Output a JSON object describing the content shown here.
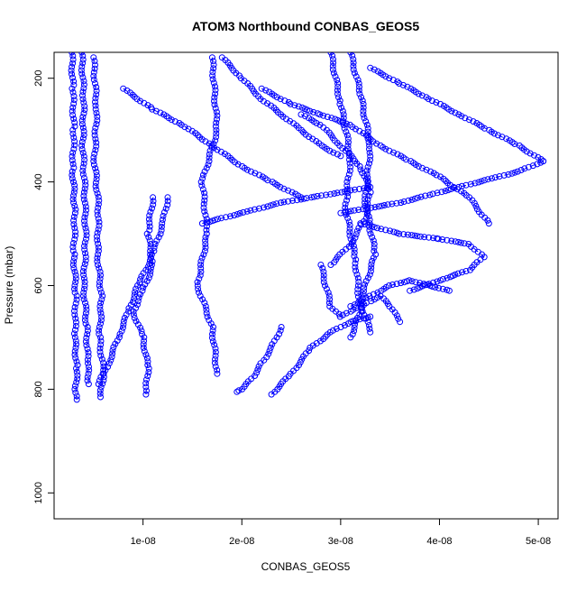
{
  "chart_data": {
    "type": "scatter",
    "title": "ATOM3 Northbound CONBAS_GEOS5",
    "xlabel": "CONBAS_GEOS5",
    "ylabel": "Pressure (mbar)",
    "xlim": [
      1e-09,
      5.2e-08
    ],
    "ylim": [
      1050,
      150
    ],
    "y_reversed": true,
    "x_ticks": [
      1e-08,
      2e-08,
      3e-08,
      4e-08,
      5e-08
    ],
    "x_tick_labels": [
      "1e-08",
      "2e-08",
      "3e-08",
      "4e-08",
      "5e-08"
    ],
    "y_ticks": [
      200,
      400,
      600,
      800,
      1000
    ],
    "y_tick_labels": [
      "200",
      "400",
      "600",
      "800",
      "1000"
    ],
    "marker": "open-circle",
    "connector": "dashed-line",
    "color": "#0000ff",
    "grid": false,
    "legend": "none",
    "series": [
      {
        "x": [
          2.8e-09,
          2.9e-09,
          3e-09,
          2.9e-09,
          3.1e-09,
          3e-09,
          3.2e-09,
          3.1e-09,
          3.3e-09,
          3.2e-09,
          3.3e-09
        ],
        "y": [
          150,
          220,
          300,
          380,
          460,
          540,
          620,
          700,
          760,
          800,
          820
        ]
      },
      {
        "x": [
          3.8e-09,
          4e-09,
          3.9e-09,
          4.1e-09,
          4.2e-09,
          4e-09,
          4.3e-09,
          4.4e-09,
          4.5e-09
        ],
        "y": [
          150,
          240,
          330,
          420,
          510,
          600,
          680,
          750,
          790
        ]
      },
      {
        "x": [
          5e-09,
          5.3e-09,
          5.1e-09,
          5.5e-09,
          5.4e-09,
          5.8e-09,
          5.6e-09,
          6e-09,
          5.7e-09
        ],
        "y": [
          160,
          260,
          360,
          450,
          540,
          620,
          700,
          770,
          815
        ]
      },
      {
        "x": [
          1.1e-08,
          1.05e-08,
          1.1e-08,
          1e-08,
          9e-09,
          1e-08,
          1.05e-08,
          1.03e-08
        ],
        "y": [
          430,
          500,
          560,
          610,
          650,
          700,
          760,
          810
        ]
      },
      {
        "x": [
          1.25e-08,
          1.2e-08,
          1.1e-08,
          9.5e-09,
          8.5e-09,
          7.5e-09,
          6.5e-09,
          5.5e-09
        ],
        "y": [
          430,
          480,
          540,
          600,
          650,
          700,
          750,
          790
        ]
      },
      {
        "x": [
          1.7e-08,
          1.75e-08,
          1.6e-08,
          1.65e-08,
          1.55e-08,
          1.7e-08,
          1.75e-08
        ],
        "y": [
          160,
          300,
          400,
          500,
          600,
          680,
          770
        ]
      },
      {
        "x": [
          2.4e-08,
          2.3e-08,
          2.2e-08,
          2.1e-08,
          2e-08,
          1.95e-08
        ],
        "y": [
          680,
          720,
          750,
          780,
          800,
          805
        ]
      },
      {
        "x": [
          2.3e-08,
          2.5e-08,
          2.7e-08,
          2.9e-08,
          3.1e-08,
          3.3e-08
        ],
        "y": [
          810,
          770,
          720,
          690,
          670,
          660
        ]
      },
      {
        "x": [
          2.9e-08,
          3e-08,
          3.1e-08,
          3.05e-08,
          3.15e-08,
          3.2e-08,
          3.1e-08
        ],
        "y": [
          150,
          250,
          350,
          450,
          550,
          650,
          700
        ]
      },
      {
        "x": [
          3.1e-08,
          3.2e-08,
          3.3e-08,
          3.25e-08,
          3.35e-08,
          3.2e-08,
          3.3e-08
        ],
        "y": [
          150,
          230,
          330,
          440,
          540,
          630,
          690
        ]
      },
      {
        "x": [
          2.2e-08,
          2.5e-08,
          2.8e-08,
          3.1e-08,
          3.4e-08,
          3.7e-08,
          4e-08,
          4.3e-08,
          4.5e-08
        ],
        "y": [
          220,
          250,
          270,
          290,
          330,
          360,
          390,
          430,
          480
        ]
      },
      {
        "x": [
          3.3e-08,
          3.6e-08,
          3.9e-08,
          4.2e-08,
          4.5e-08,
          4.8e-08,
          5.05e-08
        ],
        "y": [
          180,
          210,
          240,
          270,
          300,
          330,
          360
        ]
      },
      {
        "x": [
          5.05e-08,
          4.8e-08,
          4.5e-08,
          4.2e-08,
          3.9e-08,
          3.6e-08,
          3.3e-08,
          3e-08
        ],
        "y": [
          360,
          380,
          395,
          410,
          425,
          440,
          450,
          460
        ]
      },
      {
        "x": [
          3.2e-08,
          3.6e-08,
          4e-08,
          4.3e-08,
          4.45e-08,
          4.3e-08,
          4e-08,
          3.7e-08
        ],
        "y": [
          480,
          500,
          510,
          520,
          545,
          570,
          590,
          610
        ]
      },
      {
        "x": [
          1.6e-08,
          1.8e-08,
          2.1e-08,
          2.4e-08,
          2.7e-08,
          3e-08,
          3.3e-08
        ],
        "y": [
          480,
          470,
          455,
          440,
          430,
          420,
          410
        ]
      },
      {
        "x": [
          8e-09,
          1.1e-08,
          1.4e-08,
          1.7e-08,
          2e-08,
          2.3e-08,
          2.6e-08
        ],
        "y": [
          220,
          260,
          290,
          330,
          370,
          400,
          430
        ]
      },
      {
        "x": [
          2.8e-08,
          2.85e-08,
          2.9e-08,
          3e-08,
          3.1e-08,
          3.2e-08,
          3.3e-08,
          3.4e-08,
          3.5e-08,
          3.6e-08
        ],
        "y": [
          560,
          600,
          640,
          660,
          650,
          640,
          630,
          620,
          640,
          670
        ]
      },
      {
        "x": [
          2.6e-08,
          2.8e-08,
          3e-08,
          3.2e-08,
          3.3e-08,
          3.25e-08,
          3.1e-08,
          2.9e-08
        ],
        "y": [
          270,
          290,
          330,
          370,
          420,
          470,
          520,
          560
        ]
      },
      {
        "x": [
          1.8e-08,
          2e-08,
          2.2e-08,
          2.4e-08,
          2.6e-08,
          2.8e-08,
          3e-08
        ],
        "y": [
          160,
          200,
          240,
          270,
          300,
          330,
          350
        ]
      },
      {
        "x": [
          3.1e-08,
          3.3e-08,
          3.5e-08,
          3.7e-08,
          3.9e-08,
          4.1e-08
        ],
        "y": [
          640,
          620,
          600,
          590,
          600,
          610
        ]
      }
    ]
  }
}
